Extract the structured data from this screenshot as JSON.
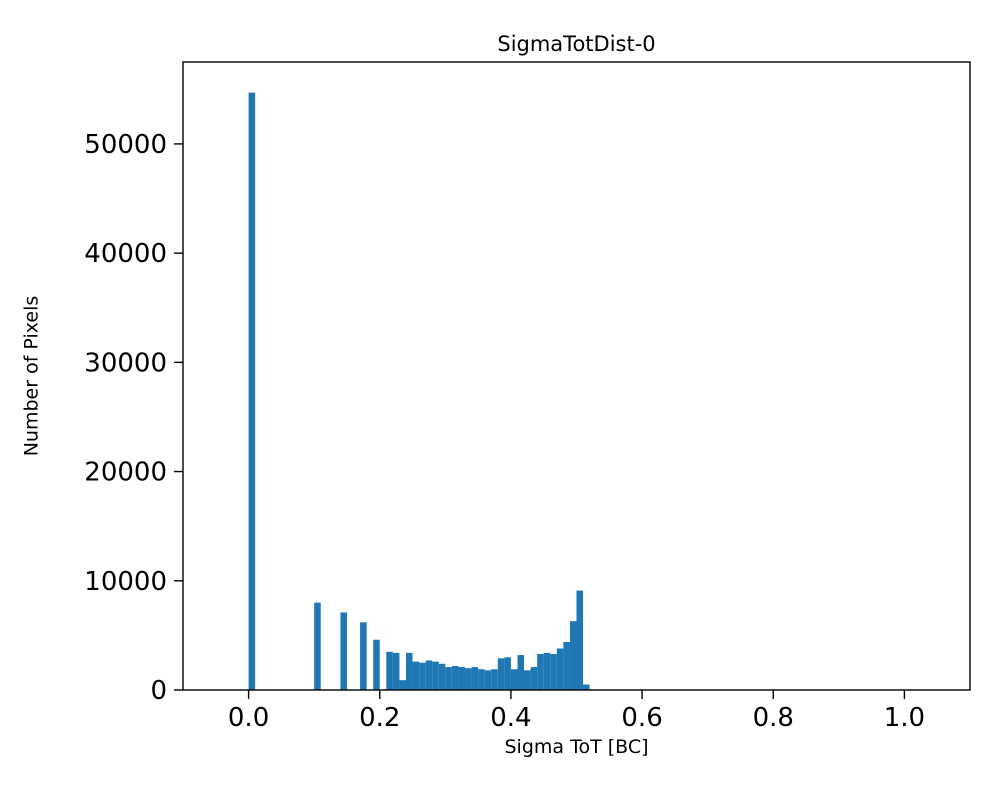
{
  "chart_data": {
    "type": "bar",
    "subtype": "histogram",
    "title": "SigmaTotDist-0",
    "xlabel": "Sigma ToT [BC]",
    "ylabel": "Number of Pixels",
    "xlim": [
      -0.1,
      1.1
    ],
    "ylim": [
      0,
      57500
    ],
    "xticks": [
      0.0,
      0.2,
      0.4,
      0.6,
      0.8,
      1.0
    ],
    "xtick_labels": [
      "0.0",
      "0.2",
      "0.4",
      "0.6",
      "0.8",
      "1.0"
    ],
    "yticks": [
      0,
      10000,
      20000,
      30000,
      40000,
      50000
    ],
    "ytick_labels": [
      "0",
      "10000",
      "20000",
      "30000",
      "40000",
      "50000"
    ],
    "bin_width": 0.01,
    "bar_color": "#1f77b4",
    "grid": false,
    "legend": null,
    "bins": [
      {
        "x": 0.0,
        "n": 54700
      },
      {
        "x": 0.1,
        "n": 8000
      },
      {
        "x": 0.14,
        "n": 7100
      },
      {
        "x": 0.17,
        "n": 6200
      },
      {
        "x": 0.19,
        "n": 4600
      },
      {
        "x": 0.21,
        "n": 3500
      },
      {
        "x": 0.22,
        "n": 3400
      },
      {
        "x": 0.23,
        "n": 900
      },
      {
        "x": 0.24,
        "n": 3400
      },
      {
        "x": 0.25,
        "n": 2600
      },
      {
        "x": 0.26,
        "n": 2500
      },
      {
        "x": 0.27,
        "n": 2700
      },
      {
        "x": 0.28,
        "n": 2600
      },
      {
        "x": 0.29,
        "n": 2400
      },
      {
        "x": 0.3,
        "n": 2100
      },
      {
        "x": 0.31,
        "n": 2200
      },
      {
        "x": 0.32,
        "n": 2100
      },
      {
        "x": 0.33,
        "n": 2000
      },
      {
        "x": 0.34,
        "n": 2100
      },
      {
        "x": 0.35,
        "n": 1900
      },
      {
        "x": 0.36,
        "n": 1800
      },
      {
        "x": 0.37,
        "n": 1900
      },
      {
        "x": 0.38,
        "n": 2900
      },
      {
        "x": 0.39,
        "n": 3000
      },
      {
        "x": 0.4,
        "n": 1900
      },
      {
        "x": 0.41,
        "n": 3200
      },
      {
        "x": 0.42,
        "n": 1800
      },
      {
        "x": 0.43,
        "n": 2100
      },
      {
        "x": 0.44,
        "n": 3300
      },
      {
        "x": 0.45,
        "n": 3400
      },
      {
        "x": 0.46,
        "n": 3300
      },
      {
        "x": 0.47,
        "n": 3800
      },
      {
        "x": 0.48,
        "n": 4400
      },
      {
        "x": 0.49,
        "n": 6300
      },
      {
        "x": 0.5,
        "n": 9100
      },
      {
        "x": 0.51,
        "n": 500
      }
    ]
  }
}
